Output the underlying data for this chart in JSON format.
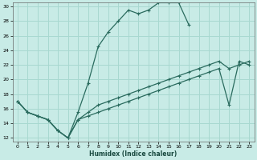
{
  "xlabel": "Humidex (Indice chaleur)",
  "bg_color": "#c8ebe6",
  "grid_color": "#a8d8d0",
  "line_color": "#2a6b5e",
  "xlim": [
    -0.5,
    23.5
  ],
  "ylim": [
    11.5,
    30.5
  ],
  "xticks": [
    0,
    1,
    2,
    3,
    4,
    5,
    6,
    7,
    8,
    9,
    10,
    11,
    12,
    13,
    14,
    15,
    16,
    17,
    18,
    19,
    20,
    21,
    22,
    23
  ],
  "yticks": [
    12,
    14,
    16,
    18,
    20,
    22,
    24,
    26,
    28,
    30
  ],
  "line1_x": [
    0,
    1,
    2,
    3,
    4,
    5,
    6,
    7,
    8,
    9,
    10,
    11,
    12,
    13,
    14,
    15,
    16,
    17
  ],
  "line1_y": [
    17,
    15.5,
    15,
    14.5,
    13,
    12,
    15.5,
    19.5,
    24.5,
    26.5,
    28.0,
    29.5,
    29.0,
    29.5,
    30.5,
    30.5,
    30.5,
    27.5
  ],
  "line2_x": [
    0,
    1,
    2,
    3,
    4,
    5,
    6,
    7,
    8,
    9,
    10,
    11,
    12,
    13,
    14,
    15,
    16,
    17,
    18,
    19,
    20,
    21,
    22,
    23
  ],
  "line2_y": [
    17,
    15.5,
    15.0,
    14.5,
    13,
    12,
    14.5,
    15.5,
    16.5,
    17.0,
    17.5,
    18.0,
    18.5,
    19.0,
    19.5,
    20.0,
    20.5,
    21.0,
    21.5,
    22.0,
    22.5,
    21.5,
    22.0,
    22.5
  ],
  "line3_x": [
    0,
    1,
    2,
    3,
    4,
    5,
    6,
    7,
    8,
    9,
    10,
    11,
    12,
    13,
    14,
    15,
    16,
    17,
    18,
    19,
    20,
    21,
    22,
    23
  ],
  "line3_y": [
    17,
    15.5,
    15.0,
    14.5,
    13,
    12,
    14.5,
    15.0,
    15.5,
    16.0,
    16.5,
    17.0,
    17.5,
    18.0,
    18.5,
    19.0,
    19.5,
    20.0,
    20.5,
    21.0,
    21.5,
    16.5,
    22.5,
    22.0
  ]
}
